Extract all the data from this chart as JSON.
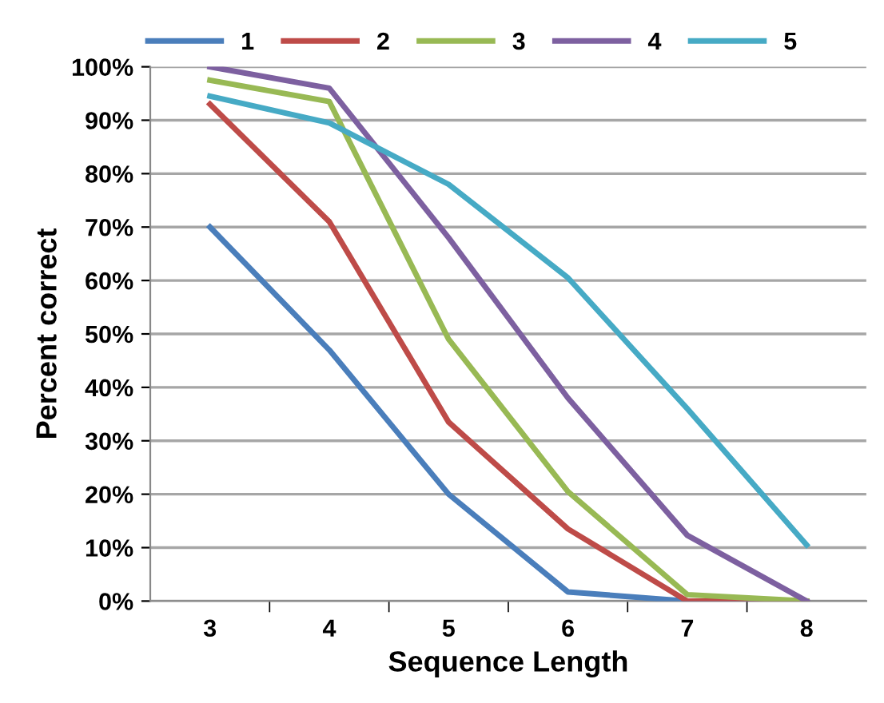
{
  "chart_data": {
    "type": "line",
    "xlabel": "Sequence Length",
    "ylabel": "Percent correct",
    "categories": [
      "3",
      "4",
      "5",
      "6",
      "7",
      "8"
    ],
    "series": [
      {
        "name": "1",
        "color": "#4a7ebb",
        "values": [
          70,
          47,
          20,
          1.7,
          0,
          0
        ]
      },
      {
        "name": "2",
        "color": "#be4b48",
        "values": [
          93,
          71,
          33.5,
          13.5,
          0,
          0
        ]
      },
      {
        "name": "3",
        "color": "#98b954",
        "values": [
          97.5,
          93.5,
          49,
          20.5,
          1.2,
          0
        ]
      },
      {
        "name": "4",
        "color": "#7d60a0",
        "values": [
          100,
          96,
          68,
          38,
          12.3,
          0
        ]
      },
      {
        "name": "5",
        "color": "#46aac5",
        "values": [
          94.5,
          89.5,
          78,
          60.5,
          36,
          10.5
        ]
      }
    ],
    "ylim": [
      0,
      100
    ],
    "yticks": [
      {
        "value": 0,
        "label": "0%"
      },
      {
        "value": 10,
        "label": "10%"
      },
      {
        "value": 20,
        "label": "20%"
      },
      {
        "value": 30,
        "label": "30%"
      },
      {
        "value": 40,
        "label": "40%"
      },
      {
        "value": 50,
        "label": "50%"
      },
      {
        "value": 60,
        "label": "60%"
      },
      {
        "value": 70,
        "label": "70%"
      },
      {
        "value": 80,
        "label": "80%"
      },
      {
        "value": 90,
        "label": "90%"
      },
      {
        "value": 100,
        "label": "100%"
      }
    ],
    "grid": "y",
    "legend": "top",
    "marker": "none",
    "line_style": "solid"
  }
}
